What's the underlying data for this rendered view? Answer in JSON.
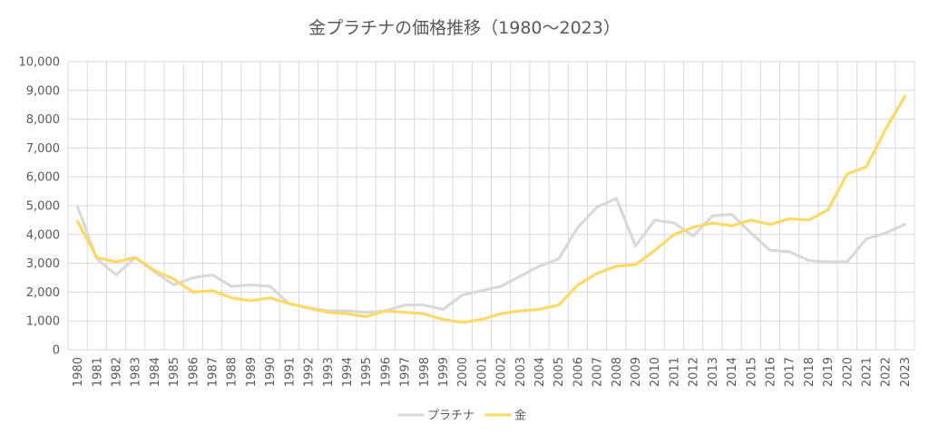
{
  "chart_data": {
    "type": "line",
    "title": "金プラチナの価格推移（1980～2023）",
    "xlabel": "",
    "ylabel": "",
    "ylim": [
      0,
      10000
    ],
    "y_ticks": [
      "0",
      "1,000",
      "2,000",
      "3,000",
      "4,000",
      "5,000",
      "6,000",
      "7,000",
      "8,000",
      "9,000",
      "10,000"
    ],
    "x": [
      "1980",
      "1981",
      "1982",
      "1983",
      "1984",
      "1985",
      "1986",
      "1987",
      "1988",
      "1989",
      "1990",
      "1991",
      "1992",
      "1993",
      "1994",
      "1995",
      "1996",
      "1997",
      "1998",
      "1999",
      "2000",
      "2001",
      "2002",
      "2003",
      "2004",
      "2005",
      "2006",
      "2007",
      "2008",
      "2009",
      "2010",
      "2011",
      "2012",
      "2013",
      "2014",
      "2015",
      "2016",
      "2017",
      "2018",
      "2019",
      "2020",
      "2021",
      "2022",
      "2023"
    ],
    "grid": true,
    "legend_position": "bottom",
    "series": [
      {
        "name": "プラチナ",
        "color": "#d9d9d9",
        "values": [
          4950,
          3150,
          2600,
          3200,
          2700,
          2250,
          2500,
          2600,
          2200,
          2250,
          2200,
          1600,
          1450,
          1350,
          1350,
          1300,
          1350,
          1550,
          1550,
          1400,
          1900,
          2050,
          2200,
          2550,
          2900,
          3150,
          4250,
          4950,
          5250,
          3600,
          4500,
          4400,
          3950,
          4650,
          4700,
          4050,
          3450,
          3400,
          3100,
          3050,
          3050,
          3850,
          4050,
          4350
        ]
      },
      {
        "name": "金",
        "color": "#ffd966",
        "values": [
          4450,
          3200,
          3050,
          3200,
          2750,
          2450,
          2000,
          2050,
          1800,
          1700,
          1800,
          1600,
          1450,
          1300,
          1250,
          1150,
          1350,
          1300,
          1250,
          1050,
          950,
          1050,
          1250,
          1350,
          1400,
          1550,
          2250,
          2650,
          2900,
          2950,
          3450,
          4000,
          4250,
          4400,
          4300,
          4500,
          4350,
          4550,
          4500,
          4850,
          6100,
          6350,
          7650,
          8800
        ]
      }
    ]
  }
}
